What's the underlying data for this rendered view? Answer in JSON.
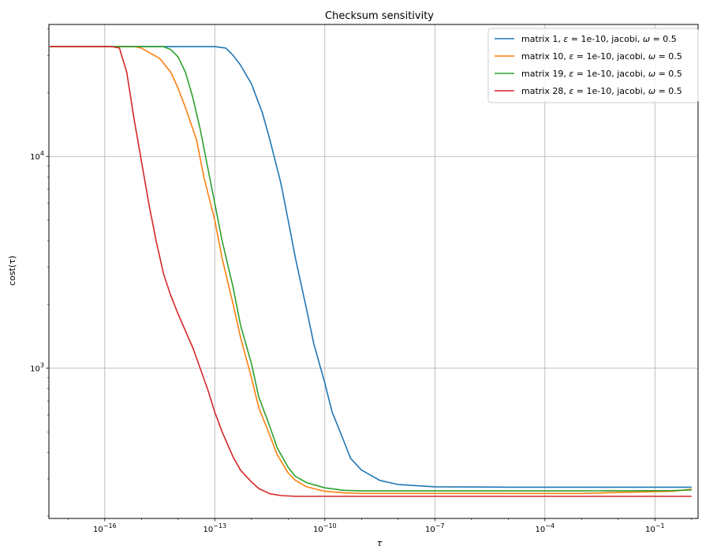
{
  "chart_data": {
    "type": "line",
    "title": "Checksum sensitivity",
    "xlabel": "τ",
    "ylabel": "cost(τ)",
    "xscale": "log",
    "yscale": "log",
    "xlim": [
      3e-18,
      1.5
    ],
    "ylim": [
      195,
      42000
    ],
    "grid": true,
    "legend_position": "top-right",
    "x_ticks": [
      {
        "value": 1e-16,
        "base": "10",
        "exp": "−16"
      },
      {
        "value": 1e-13,
        "base": "10",
        "exp": "−13"
      },
      {
        "value": 1e-10,
        "base": "10",
        "exp": "−10"
      },
      {
        "value": 1e-07,
        "base": "10",
        "exp": "−7"
      },
      {
        "value": 0.0001,
        "base": "10",
        "exp": "−4"
      },
      {
        "value": 0.1,
        "base": "10",
        "exp": "−1"
      }
    ],
    "y_ticks": [
      {
        "value": 1000,
        "base": "10",
        "exp": "3"
      },
      {
        "value": 10000,
        "base": "10",
        "exp": "4"
      }
    ],
    "series": [
      {
        "name": "matrix 1, ε = 1e-10, jacobi, ω = 0.5",
        "legend": {
          "pre": "matrix 1, ",
          "sym1": "ε",
          "mid": " = 1e-10, jacobi, ",
          "sym2": "ω",
          "post": " = 0.5"
        },
        "color": "#1f77b4",
        "x_exp": [
          -17.5,
          -13.0,
          -12.7,
          -12.5,
          -12.3,
          -12.0,
          -11.7,
          -11.5,
          -11.2,
          -11.0,
          -10.8,
          -10.5,
          -10.3,
          -10.0,
          -9.8,
          -9.5,
          -9.3,
          -9.0,
          -8.5,
          -8.0,
          -7.0,
          -5.0,
          -2.0,
          0.0
        ],
        "y": [
          33000,
          33000,
          32500,
          30000,
          27000,
          22000,
          16000,
          12000,
          7500,
          5000,
          3300,
          1900,
          1300,
          850,
          620,
          460,
          375,
          330,
          295,
          282,
          275,
          274,
          274,
          274
        ]
      },
      {
        "name": "matrix 10, ε = 1e-10, jacobi, ω = 0.5",
        "legend": {
          "pre": "matrix 10, ",
          "sym1": "ε",
          "mid": " = 1e-10, jacobi, ",
          "sym2": "ω",
          "post": " = 0.5"
        },
        "color": "#ff7f0e",
        "x_exp": [
          -17.5,
          -15.2,
          -15.0,
          -14.5,
          -14.2,
          -14.0,
          -13.8,
          -13.5,
          -13.3,
          -13.0,
          -12.8,
          -12.5,
          -12.3,
          -12.0,
          -11.8,
          -11.5,
          -11.3,
          -11.0,
          -10.8,
          -10.5,
          -10.0,
          -9.5,
          -9.0,
          -7.0,
          -3.0,
          -0.5,
          0.0
        ],
        "y": [
          33000,
          33000,
          32500,
          29000,
          25000,
          21000,
          17000,
          12000,
          8000,
          5000,
          3300,
          2000,
          1400,
          900,
          650,
          480,
          390,
          320,
          295,
          275,
          262,
          258,
          256,
          256,
          256,
          262,
          268
        ]
      },
      {
        "name": "matrix 19, ε = 1e-10, jacobi, ω = 0.5",
        "legend": {
          "pre": "matrix 19, ",
          "sym1": "ε",
          "mid": " = 1e-10, jacobi, ",
          "sym2": "ω",
          "post": " = 0.5"
        },
        "color": "#2ca02c",
        "x_exp": [
          -17.5,
          -14.4,
          -14.2,
          -14.0,
          -13.8,
          -13.6,
          -13.4,
          -13.2,
          -13.0,
          -12.8,
          -12.5,
          -12.3,
          -12.0,
          -11.8,
          -11.5,
          -11.3,
          -11.0,
          -10.8,
          -10.5,
          -10.0,
          -9.5,
          -9.0,
          -7.0,
          -3.0,
          -0.5,
          0.0
        ],
        "y": [
          33000,
          33000,
          32000,
          29500,
          25000,
          19000,
          13500,
          9000,
          6000,
          4000,
          2400,
          1600,
          1050,
          730,
          530,
          420,
          340,
          308,
          288,
          272,
          265,
          263,
          263,
          263,
          264,
          266
        ]
      },
      {
        "name": "matrix 28, ε = 1e-10, jacobi, ω = 0.5",
        "legend": {
          "pre": "matrix 28, ",
          "sym1": "ε",
          "mid": " = 1e-10, jacobi, ",
          "sym2": "ω",
          "post": " = 0.5"
        },
        "color": "#d62728",
        "x_exp": [
          -17.5,
          -15.8,
          -15.6,
          -15.4,
          -15.2,
          -15.0,
          -14.8,
          -14.6,
          -14.4,
          -14.2,
          -14.0,
          -13.8,
          -13.6,
          -13.4,
          -13.2,
          -13.0,
          -12.8,
          -12.5,
          -12.3,
          -12.0,
          -11.8,
          -11.5,
          -11.2,
          -10.8,
          -10.5,
          -10.0,
          -9.0,
          -5.0,
          0.0
        ],
        "y": [
          33000,
          33000,
          32500,
          25000,
          15000,
          9500,
          6000,
          4000,
          2800,
          2200,
          1800,
          1500,
          1250,
          1000,
          800,
          620,
          500,
          380,
          330,
          290,
          270,
          255,
          250,
          248,
          248,
          248,
          248,
          248,
          248
        ]
      }
    ]
  }
}
